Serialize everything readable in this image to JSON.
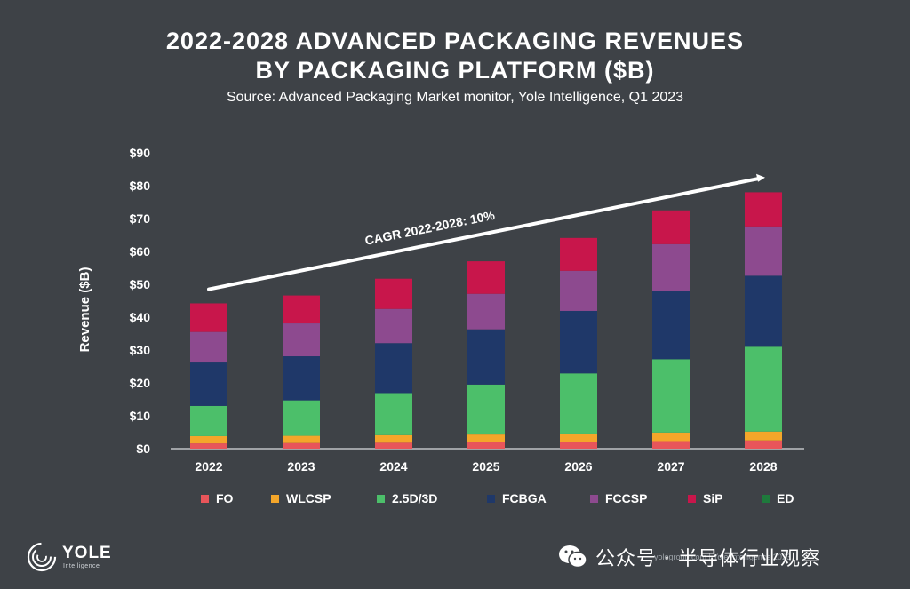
{
  "header": {
    "title_line1": "2022-2028 ADVANCED PACKAGING REVENUES",
    "title_line2": "BY PACKAGING PLATFORM ($B)",
    "subtitle": "Source: Advanced Packaging Market monitor, Yole Intelligence, Q1 2023"
  },
  "chart_data": {
    "type": "bar",
    "stacked": true,
    "title": "2022-2028 ADVANCED PACKAGING REVENUES BY PACKAGING PLATFORM ($B)",
    "xlabel": "",
    "ylabel": "Revenue ($B)",
    "ylim": [
      0,
      90
    ],
    "yticks": [
      "$0",
      "$10",
      "$20",
      "$30",
      "$40",
      "$50",
      "$60",
      "$70",
      "$80",
      "$90"
    ],
    "categories": [
      "2022",
      "2023",
      "2024",
      "2025",
      "2026",
      "2027",
      "2028"
    ],
    "series": [
      {
        "name": "FO",
        "color": "#e8555a",
        "values": [
          1.6,
          1.7,
          1.8,
          1.9,
          2.1,
          2.3,
          2.5
        ]
      },
      {
        "name": "WLCSP",
        "color": "#f4a62a",
        "values": [
          2.2,
          2.2,
          2.3,
          2.4,
          2.5,
          2.6,
          2.7
        ]
      },
      {
        "name": "2.5D/3D",
        "color": "#4cbf6a",
        "values": [
          9.2,
          10.8,
          12.8,
          15.2,
          18.3,
          22.3,
          25.8
        ]
      },
      {
        "name": "FCBGA",
        "color": "#1f3869",
        "values": [
          13.2,
          13.4,
          15.2,
          16.8,
          19.0,
          20.8,
          21.6
        ]
      },
      {
        "name": "FCCSP",
        "color": "#8d4a8f",
        "values": [
          9.3,
          10.0,
          10.4,
          10.8,
          12.2,
          14.2,
          15.0
        ]
      },
      {
        "name": "SiP",
        "color": "#c8164b",
        "values": [
          8.7,
          8.5,
          9.2,
          9.9,
          10.0,
          10.3,
          10.4
        ]
      },
      {
        "name": "ED",
        "color": "#1e7a3c",
        "values": [
          0.0,
          0.0,
          0.0,
          0.0,
          0.0,
          0.0,
          0.0
        ]
      }
    ],
    "annotation": {
      "text": "CAGR 2022-2028: 10%",
      "from_x": "2022",
      "from_y": 48.5,
      "to_x": "2028",
      "to_y": 82.5
    },
    "grid": false,
    "legend_position": "bottom"
  },
  "branding": {
    "logo_name": "YOLE",
    "logo_sub": "Intelligence",
    "watermark_text": "公众号 · 半导体行业观察",
    "watermark_sub": "yolegroup.com | Yole Intelligence 2023"
  }
}
